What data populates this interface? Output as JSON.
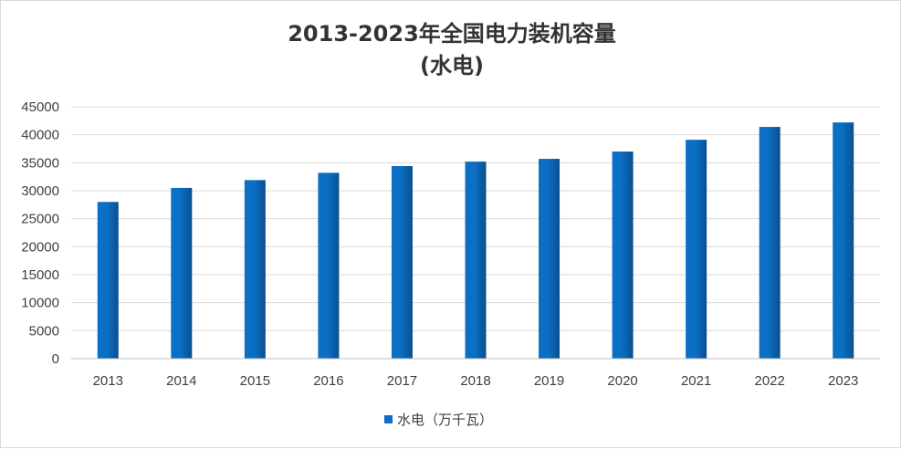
{
  "chart_data": {
    "type": "bar",
    "title": "2013-2023年全国电力装机容量",
    "subtitle": "(水电)",
    "categories": [
      "2013",
      "2014",
      "2015",
      "2016",
      "2017",
      "2018",
      "2019",
      "2020",
      "2021",
      "2022",
      "2023"
    ],
    "series": [
      {
        "name": "水电（万千瓦）",
        "values": [
          28000,
          30500,
          31900,
          33200,
          34400,
          35200,
          35700,
          37000,
          39100,
          41400,
          42200
        ]
      }
    ],
    "ylim": [
      0,
      45000
    ],
    "yticks": [
      "0",
      "5000",
      "10000",
      "15000",
      "20000",
      "25000",
      "30000",
      "35000",
      "40000",
      "45000"
    ],
    "grid": true,
    "legend_position": "bottom",
    "colors": {
      "bar": "#0b6fc4",
      "bar_dark": "#0a4f8f",
      "grid": "#d9d9d9",
      "axis": "#bfbfbf"
    }
  }
}
